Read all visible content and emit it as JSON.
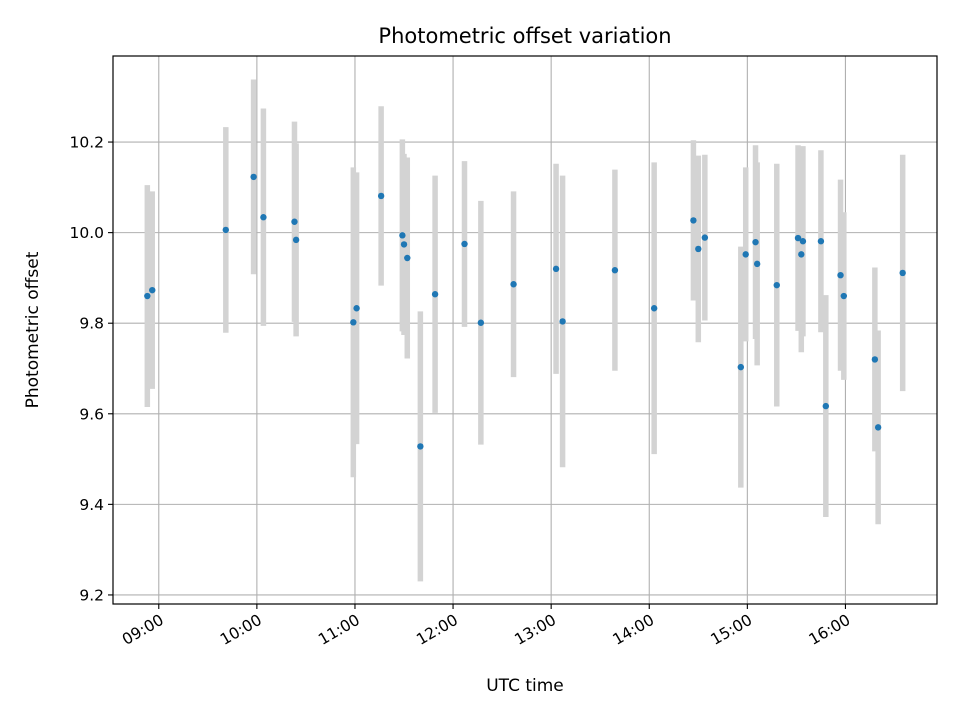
{
  "chart_data": {
    "type": "scatter",
    "title": "Photometric offset variation",
    "xlabel": "UTC time",
    "ylabel": "Photometric offset",
    "x_tick_labels": [
      "09:00",
      "10:00",
      "11:00",
      "12:00",
      "13:00",
      "14:00",
      "15:00",
      "16:00"
    ],
    "y_tick_labels": [
      "9.2",
      "9.4",
      "9.6",
      "9.8",
      "10.0",
      "10.2"
    ],
    "x_ticks": [
      "09:00",
      "10:00",
      "11:00",
      "12:00",
      "13:00",
      "14:00",
      "15:00",
      "16:00"
    ],
    "y_ticks": [
      9.2,
      9.4,
      9.6,
      9.8,
      10.0,
      10.2
    ],
    "xlim": [
      "08:32",
      "16:56"
    ],
    "ylim": [
      9.18,
      10.39
    ],
    "grid": true,
    "colors": {
      "marker": "#1f77b4",
      "errorbar": "#d3d3d3",
      "grid": "#b0b0b0"
    },
    "series": [
      {
        "points": [
          {
            "x": "08:53",
            "y": 9.86,
            "err": 0.245
          },
          {
            "x": "08:56",
            "y": 9.873,
            "err": 0.218
          },
          {
            "x": "09:41",
            "y": 10.006,
            "err": 0.227
          },
          {
            "x": "09:58",
            "y": 10.123,
            "err": 0.215
          },
          {
            "x": "10:04",
            "y": 10.034,
            "err": 0.24
          },
          {
            "x": "10:23",
            "y": 10.024,
            "err": 0.221
          },
          {
            "x": "10:24",
            "y": 9.984,
            "err": 0.213
          },
          {
            "x": "10:59",
            "y": 9.802,
            "err": 0.342
          },
          {
            "x": "11:01",
            "y": 9.833,
            "err": 0.3
          },
          {
            "x": "11:16",
            "y": 10.081,
            "err": 0.198
          },
          {
            "x": "11:29",
            "y": 9.994,
            "err": 0.212
          },
          {
            "x": "11:30",
            "y": 9.974,
            "err": 0.2
          },
          {
            "x": "11:32",
            "y": 9.944,
            "err": 0.222
          },
          {
            "x": "11:40",
            "y": 9.528,
            "err": 0.298
          },
          {
            "x": "11:49",
            "y": 9.864,
            "err": 0.262
          },
          {
            "x": "12:07",
            "y": 9.975,
            "err": 0.183
          },
          {
            "x": "12:17",
            "y": 9.801,
            "err": 0.269
          },
          {
            "x": "12:37",
            "y": 9.886,
            "err": 0.205
          },
          {
            "x": "13:03",
            "y": 9.92,
            "err": 0.232
          },
          {
            "x": "13:07",
            "y": 9.804,
            "err": 0.322
          },
          {
            "x": "13:39",
            "y": 9.917,
            "err": 0.222
          },
          {
            "x": "14:03",
            "y": 9.833,
            "err": 0.322
          },
          {
            "x": "14:27",
            "y": 10.027,
            "err": 0.177
          },
          {
            "x": "14:30",
            "y": 9.964,
            "err": 0.206
          },
          {
            "x": "14:34",
            "y": 9.989,
            "err": 0.183
          },
          {
            "x": "14:56",
            "y": 9.703,
            "err": 0.266
          },
          {
            "x": "14:59",
            "y": 9.952,
            "err": 0.192
          },
          {
            "x": "15:05",
            "y": 9.979,
            "err": 0.214
          },
          {
            "x": "15:06",
            "y": 9.931,
            "err": 0.224
          },
          {
            "x": "15:18",
            "y": 9.884,
            "err": 0.268
          },
          {
            "x": "15:31",
            "y": 9.988,
            "err": 0.205
          },
          {
            "x": "15:33",
            "y": 9.952,
            "err": 0.216
          },
          {
            "x": "15:34",
            "y": 9.981,
            "err": 0.21
          },
          {
            "x": "15:45",
            "y": 9.981,
            "err": 0.201
          },
          {
            "x": "15:48",
            "y": 9.617,
            "err": 0.245
          },
          {
            "x": "15:57",
            "y": 9.906,
            "err": 0.211
          },
          {
            "x": "15:59",
            "y": 9.86,
            "err": 0.185
          },
          {
            "x": "16:18",
            "y": 9.72,
            "err": 0.203
          },
          {
            "x": "16:20",
            "y": 9.57,
            "err": 0.214
          },
          {
            "x": "16:35",
            "y": 9.911,
            "err": 0.261
          }
        ]
      }
    ]
  }
}
